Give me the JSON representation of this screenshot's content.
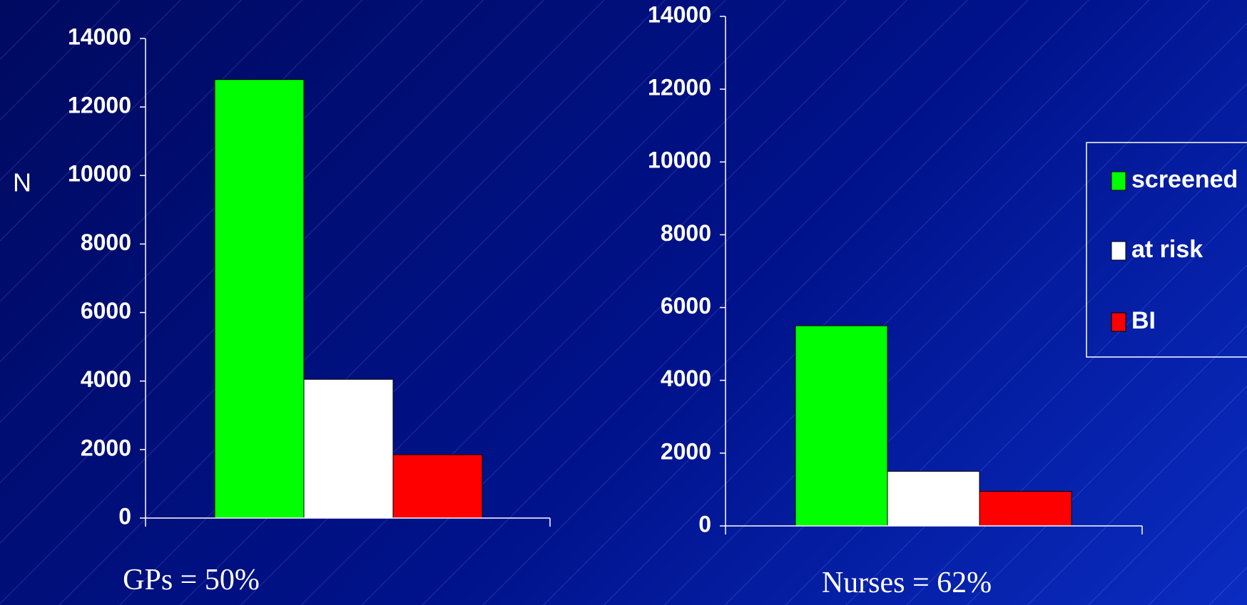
{
  "chart_data": [
    {
      "type": "bar",
      "xlabel": "GPs = 50%",
      "ylabel": "N",
      "categories": [
        null
      ],
      "series": [
        {
          "color": "#00ff00",
          "values": [
            12800
          ]
        },
        {
          "color": "#ffffff",
          "values": [
            4050
          ]
        },
        {
          "color": "#ff0000",
          "values": [
            1850
          ]
        }
      ],
      "ylim": [
        0,
        14000
      ],
      "yticks": [
        0,
        2000,
        4000,
        6000,
        8000,
        10000,
        12000,
        14000
      ],
      "legend": false
    },
    {
      "type": "bar",
      "xlabel": "Nurses = 62%",
      "categories": [
        null
      ],
      "series": [
        {
          "name": "screened",
          "color": "#00ff00",
          "values": [
            5500
          ]
        },
        {
          "name": "at risk",
          "color": "#ffffff",
          "values": [
            1500
          ]
        },
        {
          "name": "BI",
          "color": "#ff0000",
          "values": [
            950
          ]
        }
      ],
      "ylim": [
        0,
        14000
      ],
      "yticks": [
        0,
        2000,
        4000,
        6000,
        8000,
        10000,
        12000,
        14000
      ],
      "legend": true,
      "legend_position": "right"
    }
  ]
}
